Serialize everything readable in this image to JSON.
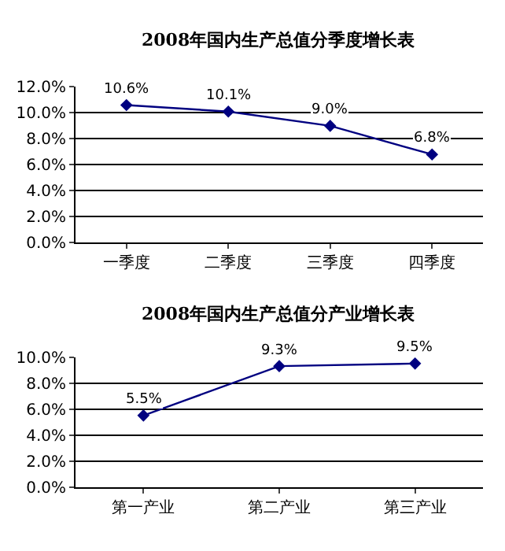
{
  "chart_data": [
    {
      "type": "line",
      "title": "2008年国内生产总值分季度增长表",
      "categories": [
        "一季度",
        "二季度",
        "三季度",
        "四季度"
      ],
      "series": [
        {
          "color": "#000080",
          "values": [
            10.6,
            10.1,
            9.0,
            6.8
          ],
          "value_labels": [
            "10.6%",
            "10.1%",
            "9.0%",
            "6.8%"
          ]
        }
      ],
      "ylim": [
        0,
        12
      ],
      "yticks": [
        {
          "value": 0,
          "label": "0.0%"
        },
        {
          "value": 2,
          "label": "2.0%"
        },
        {
          "value": 4,
          "label": "4.0%"
        },
        {
          "value": 6,
          "label": "6.0%"
        },
        {
          "value": 8,
          "label": "8.0%"
        },
        {
          "value": 10,
          "label": "10.0%"
        },
        {
          "value": 12,
          "label": "12.0%"
        }
      ],
      "grid": "y",
      "marker": "diamond",
      "line_style": "solid"
    },
    {
      "type": "line",
      "title": "2008年国内生产总值分产业增长表",
      "categories": [
        "第一产业",
        "第二产业",
        "第三产业"
      ],
      "series": [
        {
          "color": "#000080",
          "values": [
            5.5,
            9.3,
            9.5
          ],
          "value_labels": [
            "5.5%",
            "9.3%",
            "9.5%"
          ]
        }
      ],
      "ylim": [
        0,
        10
      ],
      "yticks": [
        {
          "value": 0,
          "label": "0.0%"
        },
        {
          "value": 2,
          "label": "2.0%"
        },
        {
          "value": 4,
          "label": "4.0%"
        },
        {
          "value": 6,
          "label": "6.0%"
        },
        {
          "value": 8,
          "label": "8.0%"
        },
        {
          "value": 10,
          "label": "10.0%"
        }
      ],
      "grid": "y",
      "marker": "diamond",
      "line_style": "solid"
    }
  ]
}
